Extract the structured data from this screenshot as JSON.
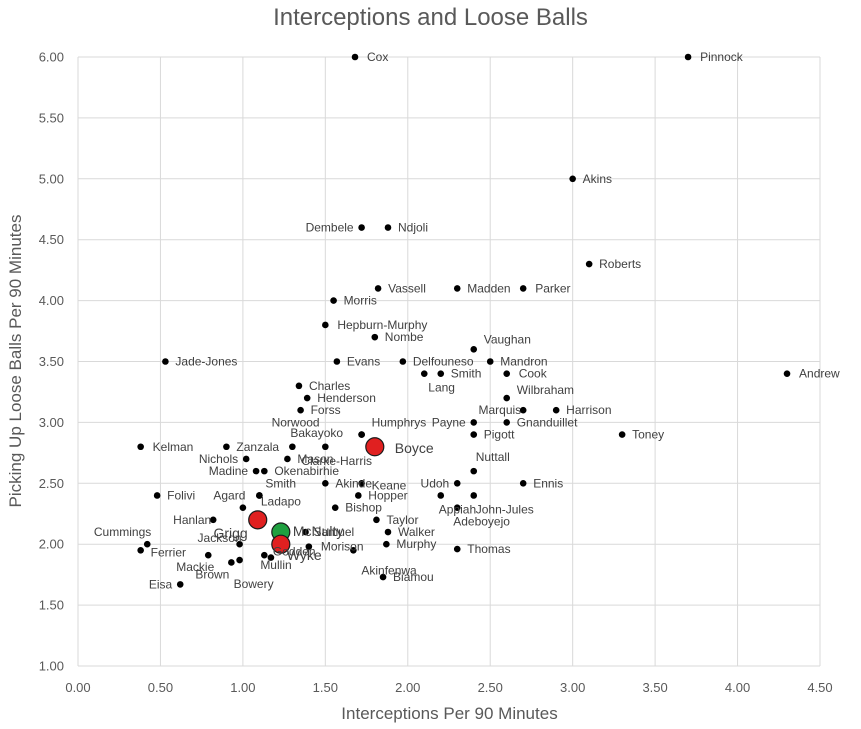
{
  "chart_data": {
    "type": "scatter",
    "title": "Interceptions and Loose Balls",
    "xlabel": "Interceptions Per 90 Minutes",
    "ylabel": "Picking Up Loose Balls Per 90 Minutes",
    "xlim": [
      0,
      4.5
    ],
    "ylim": [
      1.0,
      6.0
    ],
    "xticks": [
      "0.00",
      "0.50",
      "1.00",
      "1.50",
      "2.00",
      "2.50",
      "3.00",
      "3.50",
      "4.00",
      "4.50"
    ],
    "yticks": [
      "1.00",
      "1.50",
      "2.00",
      "2.50",
      "3.00",
      "3.50",
      "4.00",
      "4.50",
      "5.00",
      "5.50",
      "6.00"
    ],
    "grid": true,
    "legend": "none",
    "colors": {
      "default": "#000000",
      "highlight_red": "#e02020",
      "highlight_green": "#20a040",
      "grid": "#d9d9d9"
    },
    "points": [
      {
        "name": "Cox",
        "x": 1.68,
        "y": 6.0
      },
      {
        "name": "Pinnock",
        "x": 3.7,
        "y": 6.0
      },
      {
        "name": "Akins",
        "x": 3.0,
        "y": 5.0
      },
      {
        "name": "Dembele",
        "x": 1.72,
        "y": 4.6
      },
      {
        "name": "Ndjoli",
        "x": 1.88,
        "y": 4.6
      },
      {
        "name": "Roberts",
        "x": 3.1,
        "y": 4.3
      },
      {
        "name": "Vassell",
        "x": 1.82,
        "y": 4.1
      },
      {
        "name": "Madden",
        "x": 2.3,
        "y": 4.1
      },
      {
        "name": "Parker",
        "x": 2.7,
        "y": 4.1
      },
      {
        "name": "Morris",
        "x": 1.55,
        "y": 4.0
      },
      {
        "name": "Hepburn-Murphy",
        "x": 1.5,
        "y": 3.8
      },
      {
        "name": "Nombe",
        "x": 1.8,
        "y": 3.7
      },
      {
        "name": "Vaughan",
        "x": 2.4,
        "y": 3.6
      },
      {
        "name": "Jade-Jones",
        "x": 0.53,
        "y": 3.5
      },
      {
        "name": "Evans",
        "x": 1.57,
        "y": 3.5
      },
      {
        "name": "Delfouneso",
        "x": 1.97,
        "y": 3.5
      },
      {
        "name": "Mandron",
        "x": 2.5,
        "y": 3.5
      },
      {
        "name": "Lang",
        "x": 2.1,
        "y": 3.4
      },
      {
        "name": "Smith",
        "x": 2.2,
        "y": 3.4
      },
      {
        "name": "Cook",
        "x": 2.6,
        "y": 3.4
      },
      {
        "name": "Andrew",
        "x": 4.3,
        "y": 3.4
      },
      {
        "name": "Charles",
        "x": 1.34,
        "y": 3.3
      },
      {
        "name": "Henderson",
        "x": 1.39,
        "y": 3.2
      },
      {
        "name": "Wilbraham",
        "x": 2.6,
        "y": 3.2
      },
      {
        "name": "Forss",
        "x": 1.35,
        "y": 3.1
      },
      {
        "name": "Marquis",
        "x": 2.7,
        "y": 3.1
      },
      {
        "name": "Harrison",
        "x": 2.9,
        "y": 3.1
      },
      {
        "name": "Payne",
        "x": 2.4,
        "y": 3.0
      },
      {
        "name": "Gnanduillet",
        "x": 2.6,
        "y": 3.0
      },
      {
        "name": "Norwood",
        "x": 1.72,
        "y": 2.9
      },
      {
        "name": "Humphrys",
        "x": 1.72,
        "y": 2.9
      },
      {
        "name": "Pigott",
        "x": 2.4,
        "y": 2.9
      },
      {
        "name": "Toney",
        "x": 3.3,
        "y": 2.9
      },
      {
        "name": "Kelman",
        "x": 0.38,
        "y": 2.8
      },
      {
        "name": "Zanzala",
        "x": 0.9,
        "y": 2.8
      },
      {
        "name": "Bakayoko",
        "x": 1.3,
        "y": 2.8
      },
      {
        "name": "Clarke-Harris",
        "x": 1.5,
        "y": 2.8
      },
      {
        "name": "Boyce",
        "x": 1.8,
        "y": 2.8
      },
      {
        "name": "Nichols",
        "x": 1.02,
        "y": 2.7
      },
      {
        "name": "Mason",
        "x": 1.27,
        "y": 2.7
      },
      {
        "name": "Madine",
        "x": 1.08,
        "y": 2.6
      },
      {
        "name": "Okenabirhie",
        "x": 1.13,
        "y": 2.6
      },
      {
        "name": "Nuttall",
        "x": 2.4,
        "y": 2.6
      },
      {
        "name": "Akinde",
        "x": 1.5,
        "y": 2.5
      },
      {
        "name": "Keane",
        "x": 1.72,
        "y": 2.5
      },
      {
        "name": "Udoh",
        "x": 2.3,
        "y": 2.5
      },
      {
        "name": "Ennis",
        "x": 2.7,
        "y": 2.5
      },
      {
        "name": "Folivi",
        "x": 0.48,
        "y": 2.4
      },
      {
        "name": "Agard",
        "x": 1.1,
        "y": 2.4
      },
      {
        "name": "Smith",
        "x": 1.1,
        "y": 2.4
      },
      {
        "name": "Hopper",
        "x": 1.7,
        "y": 2.4
      },
      {
        "name": "Appiah",
        "x": 2.2,
        "y": 2.4
      },
      {
        "name": "John-Jules",
        "x": 2.4,
        "y": 2.4
      },
      {
        "name": "Ladapo",
        "x": 1.0,
        "y": 2.3
      },
      {
        "name": "Bishop",
        "x": 1.56,
        "y": 2.3
      },
      {
        "name": "Adeboyejo",
        "x": 2.3,
        "y": 2.3
      },
      {
        "name": "Hanlan",
        "x": 0.82,
        "y": 2.2
      },
      {
        "name": "Grigg",
        "x": 1.09,
        "y": 2.2
      },
      {
        "name": "Taylor",
        "x": 1.81,
        "y": 2.2
      },
      {
        "name": "McNulty",
        "x": 1.23,
        "y": 2.1
      },
      {
        "name": "Samuel",
        "x": 1.38,
        "y": 2.1
      },
      {
        "name": "Walker",
        "x": 1.88,
        "y": 2.1
      },
      {
        "name": "Cummings",
        "x": 0.42,
        "y": 2.0
      },
      {
        "name": "Jackson",
        "x": 0.98,
        "y": 2.0
      },
      {
        "name": "Wyke",
        "x": 1.23,
        "y": 2.0
      },
      {
        "name": "Morison",
        "x": 1.4,
        "y": 1.98
      },
      {
        "name": "Murphy",
        "x": 1.87,
        "y": 2.0
      },
      {
        "name": "Thomas",
        "x": 2.3,
        "y": 1.96
      },
      {
        "name": "Ferrier",
        "x": 0.38,
        "y": 1.95
      },
      {
        "name": "Akinfenwa",
        "x": 1.67,
        "y": 1.95
      },
      {
        "name": "Mackie",
        "x": 0.79,
        "y": 1.91
      },
      {
        "name": "Mullin",
        "x": 1.13,
        "y": 1.91
      },
      {
        "name": "Godden",
        "x": 1.17,
        "y": 1.89
      },
      {
        "name": "Brown",
        "x": 0.93,
        "y": 1.85
      },
      {
        "name": "Bowery",
        "x": 0.98,
        "y": 1.87
      },
      {
        "name": "Biamou",
        "x": 1.85,
        "y": 1.73
      },
      {
        "name": "Eisa",
        "x": 0.62,
        "y": 1.67
      }
    ],
    "highlighted": {
      "Boyce": "red",
      "Grigg": "red",
      "Wyke": "red",
      "McNulty": "green"
    }
  }
}
